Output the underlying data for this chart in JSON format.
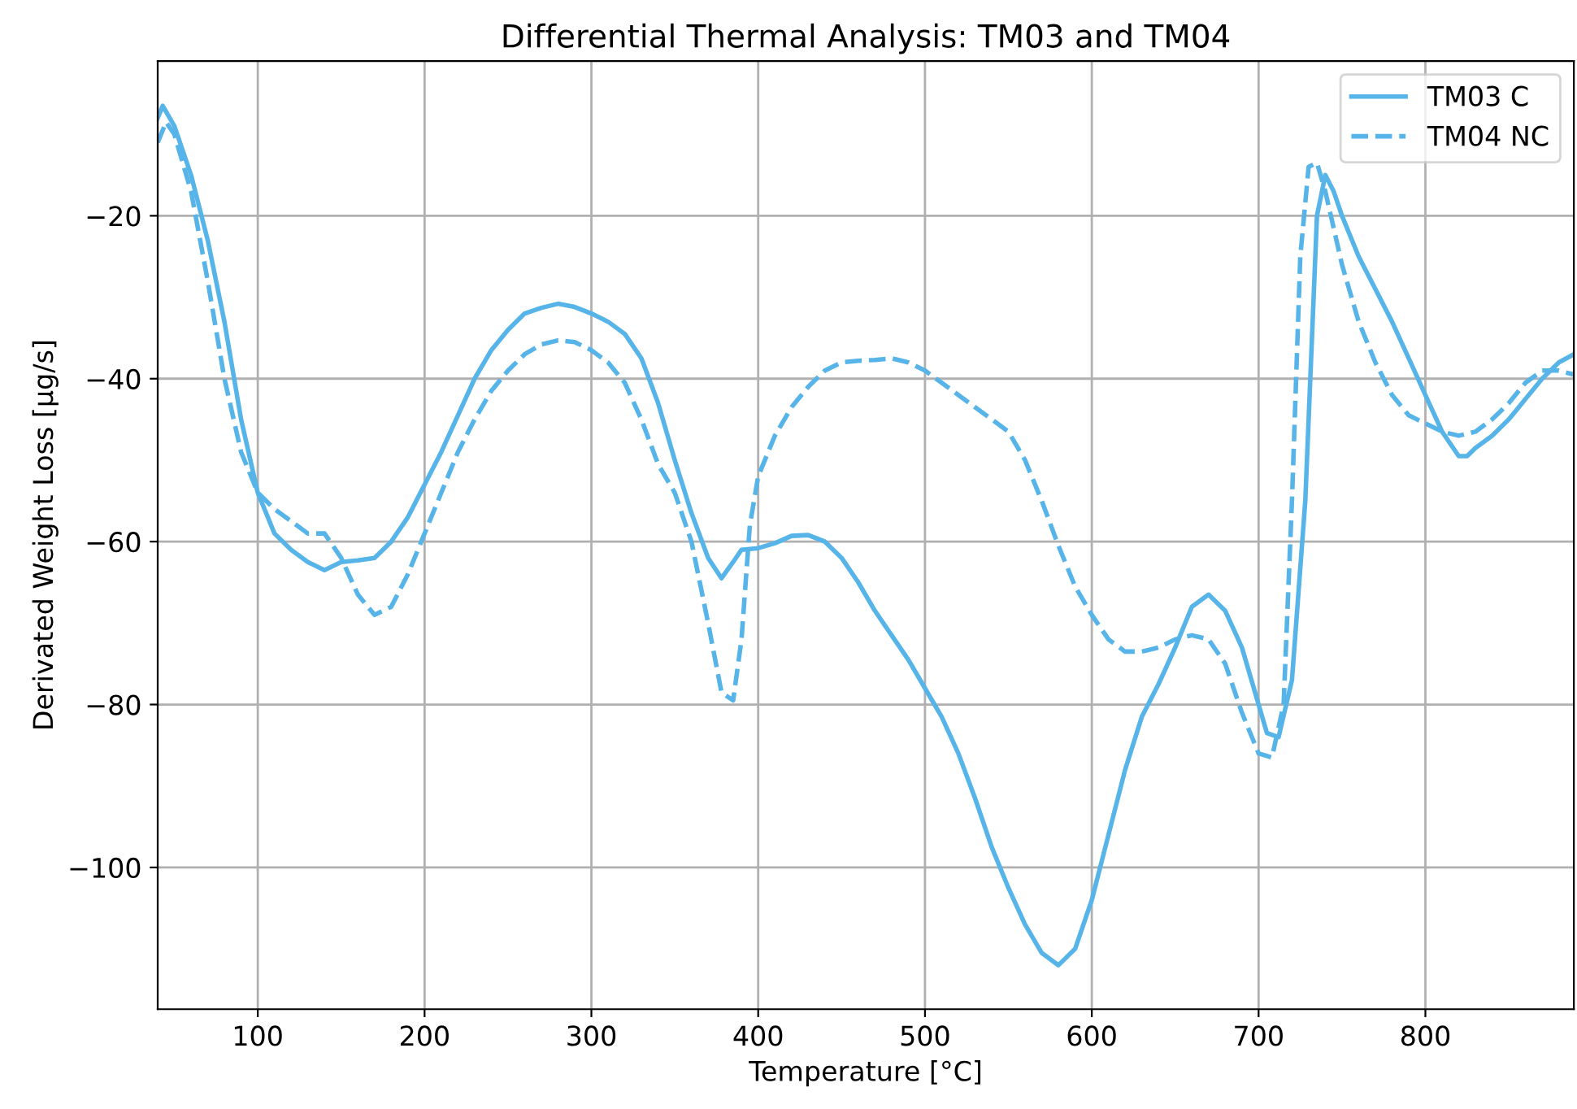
{
  "chart_data": {
    "type": "line",
    "title": "Differential Thermal Analysis: TM03 and TM04",
    "xlabel": "Temperature [°C]",
    "ylabel": "Derivated Weight Loss [µg/s]",
    "xlim": [
      40,
      889
    ],
    "xticks": [
      100,
      200,
      300,
      400,
      500,
      600,
      700,
      800
    ],
    "ylim": [
      -117.4,
      -1
    ],
    "yticks": [
      -100,
      -80,
      -60,
      -40,
      -20
    ],
    "grid": true,
    "legend": "top right",
    "series": [
      {
        "name": "TM03 C",
        "color": "#56b4e9",
        "line_style": "solid",
        "x": [
          40,
          43,
          50,
          60,
          70,
          80,
          90,
          100,
          110,
          120,
          130,
          140,
          150,
          160,
          170,
          180,
          190,
          200,
          210,
          220,
          230,
          240,
          250,
          260,
          270,
          280,
          290,
          300,
          310,
          320,
          330,
          340,
          350,
          360,
          370,
          378,
          385,
          390,
          400,
          410,
          420,
          430,
          440,
          450,
          460,
          470,
          480,
          490,
          500,
          510,
          520,
          530,
          540,
          550,
          560,
          570,
          580,
          590,
          600,
          610,
          620,
          630,
          640,
          650,
          660,
          670,
          680,
          690,
          700,
          705,
          712,
          720,
          728,
          735,
          740,
          745,
          750,
          760,
          770,
          780,
          790,
          800,
          810,
          820,
          825,
          830,
          840,
          850,
          860,
          870,
          880,
          889
        ],
        "values": [
          -8,
          -6.5,
          -9,
          -15,
          -23,
          -33,
          -45,
          -54,
          -59,
          -61,
          -62.5,
          -63.5,
          -62.5,
          -62.3,
          -62,
          -60,
          -57,
          -53,
          -49,
          -44.5,
          -40,
          -36.5,
          -34,
          -32,
          -31.3,
          -30.8,
          -31.2,
          -32,
          -33,
          -34.5,
          -37.5,
          -43,
          -50,
          -56.5,
          -62,
          -64.5,
          -62.5,
          -61,
          -60.8,
          -60.2,
          -59.3,
          -59.2,
          -60,
          -62,
          -65,
          -68.5,
          -71.5,
          -74.5,
          -78,
          -81.5,
          -86,
          -91.5,
          -97.5,
          -102.5,
          -107,
          -110.5,
          -112,
          -110,
          -104,
          -96,
          -88,
          -81.5,
          -77.5,
          -73,
          -68,
          -66.5,
          -68.5,
          -73,
          -80,
          -83.5,
          -84,
          -77,
          -55,
          -20,
          -15,
          -17,
          -20,
          -25,
          -29,
          -33,
          -37.5,
          -42,
          -46.5,
          -49.5,
          -49.5,
          -48.5,
          -47,
          -45,
          -42.5,
          -40,
          -38,
          -37
        ]
      },
      {
        "name": "TM04 NC",
        "color": "#56b4e9",
        "line_style": "dashed",
        "x": [
          40,
          45,
          50,
          60,
          70,
          80,
          90,
          100,
          110,
          120,
          130,
          140,
          150,
          160,
          170,
          180,
          190,
          200,
          210,
          220,
          230,
          240,
          250,
          260,
          270,
          280,
          290,
          300,
          310,
          320,
          330,
          340,
          350,
          360,
          370,
          378,
          385,
          390,
          395,
          400,
          410,
          420,
          430,
          440,
          450,
          460,
          470,
          480,
          490,
          500,
          510,
          520,
          530,
          540,
          550,
          560,
          570,
          580,
          590,
          600,
          610,
          620,
          630,
          640,
          650,
          660,
          670,
          680,
          690,
          700,
          708,
          715,
          720,
          725,
          730,
          735,
          740,
          750,
          760,
          770,
          780,
          790,
          800,
          810,
          820,
          830,
          840,
          850,
          860,
          870,
          880,
          889
        ],
        "values": [
          -11,
          -8.5,
          -10,
          -17,
          -28,
          -40,
          -49,
          -54,
          -56,
          -57.5,
          -59,
          -59,
          -62,
          -66.5,
          -69,
          -68,
          -64,
          -59,
          -54,
          -49,
          -45,
          -41.5,
          -39,
          -37,
          -35.8,
          -35.3,
          -35.5,
          -36.5,
          -38,
          -40.5,
          -45,
          -50.5,
          -54,
          -60,
          -70,
          -78.5,
          -79.5,
          -72,
          -58,
          -52,
          -47,
          -43.5,
          -41,
          -39,
          -38,
          -37.8,
          -37.7,
          -37.5,
          -38,
          -39,
          -40.5,
          -42,
          -43.5,
          -45,
          -46.5,
          -50,
          -55,
          -60.5,
          -65.5,
          -69,
          -72,
          -73.5,
          -73.5,
          -73,
          -72,
          -71.5,
          -72,
          -75,
          -81,
          -86,
          -86.5,
          -80,
          -55,
          -25,
          -14,
          -13.5,
          -17,
          -26,
          -33,
          -38,
          -42,
          -44.5,
          -45.5,
          -46.5,
          -47,
          -46.5,
          -45,
          -43,
          -40.5,
          -39,
          -39,
          -39.5
        ]
      }
    ]
  }
}
